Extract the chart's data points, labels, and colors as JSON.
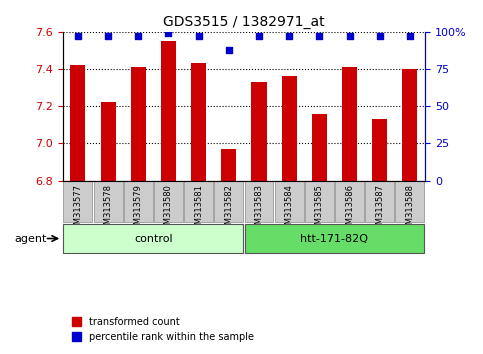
{
  "title": "GDS3515 / 1382971_at",
  "samples": [
    "GSM313577",
    "GSM313578",
    "GSM313579",
    "GSM313580",
    "GSM313581",
    "GSM313582",
    "GSM313583",
    "GSM313584",
    "GSM313585",
    "GSM313586",
    "GSM313587",
    "GSM313588"
  ],
  "red_values": [
    7.42,
    7.22,
    7.41,
    7.55,
    7.43,
    6.97,
    7.33,
    7.36,
    7.16,
    7.41,
    7.13,
    7.4
  ],
  "blue_values": [
    97,
    97,
    97,
    99,
    97,
    88,
    97,
    97,
    97,
    97,
    97,
    97
  ],
  "ylim_left": [
    6.8,
    7.6
  ],
  "ylim_right": [
    0,
    100
  ],
  "yticks_left": [
    6.8,
    7.0,
    7.2,
    7.4,
    7.6
  ],
  "yticks_right": [
    0,
    25,
    50,
    75,
    100
  ],
  "ytick_labels_right": [
    "0",
    "25",
    "50",
    "75",
    "100%"
  ],
  "bar_color": "#cc0000",
  "dot_color": "#0000cc",
  "bar_width": 0.5,
  "group1_label": "control",
  "group2_label": "htt-171-82Q",
  "group1_color": "#ccffcc",
  "group2_color": "#66dd66",
  "group1_indices": [
    0,
    1,
    2,
    3,
    4,
    5
  ],
  "group2_indices": [
    6,
    7,
    8,
    9,
    10,
    11
  ],
  "agent_label": "agent",
  "legend_red_label": "transformed count",
  "legend_blue_label": "percentile rank within the sample",
  "xlabel_color": "#cc0000",
  "ylabel_color": "#0000cc",
  "grid_color": "#000000",
  "background_color": "#ffffff",
  "plot_bg_color": "#ffffff",
  "tick_label_bg": "#cccccc"
}
